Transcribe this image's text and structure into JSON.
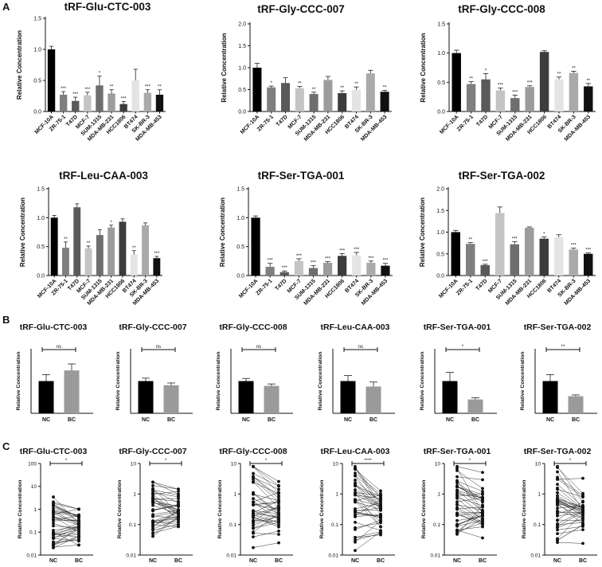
{
  "panel_labels": [
    "A",
    "B",
    "C"
  ],
  "chart_data": [
    {
      "panel": "A",
      "type": "bar",
      "title": "tRF-Glu-CTC-003",
      "ylabel": "Relative Concentration",
      "ylim": [
        0,
        1.5
      ],
      "yticks": [
        "0.0",
        "0.5",
        "1.0",
        "1.5"
      ],
      "categories": [
        "MCF-10A",
        "ZR-75-1",
        "T47D",
        "MCF-7",
        "SUM-1315",
        "MDA-MB-231",
        "HCC1806",
        "BT474",
        "SK-BR-3",
        "MDA-MB-453"
      ],
      "values": [
        1.0,
        0.27,
        0.17,
        0.26,
        0.42,
        0.29,
        0.12,
        0.5,
        0.3,
        0.27
      ],
      "errors": [
        0.05,
        0.05,
        0.06,
        0.05,
        0.15,
        0.06,
        0.04,
        0.18,
        0.05,
        0.08
      ],
      "significance": [
        "",
        "***",
        "***",
        "***",
        "*",
        "**",
        "***",
        "",
        "***",
        "**"
      ],
      "colors": [
        "#000000",
        "#7f7f7f",
        "#5a5a5a",
        "#c4c4c4",
        "#6e6e6e",
        "#9c9c9c",
        "#3c3c3c",
        "#e4e4e4",
        "#aaaaaa",
        "#111111"
      ]
    },
    {
      "panel": "A",
      "type": "bar",
      "title": "tRF-Gly-CCC-007",
      "ylabel": "Relative Concentration",
      "ylim": [
        0,
        2.0
      ],
      "yticks": [
        "0.0",
        "0.5",
        "1.0",
        "1.5",
        "2.0"
      ],
      "categories": [
        "MCF-10A",
        "ZR-75-1",
        "T47D",
        "MCF-7",
        "SUM-1315",
        "MDA-MB-231",
        "HCC1806",
        "BT474",
        "SK-BR-3",
        "MDA-MB-453"
      ],
      "values": [
        1.0,
        0.55,
        0.65,
        0.53,
        0.4,
        0.72,
        0.42,
        0.5,
        0.87,
        0.45
      ],
      "errors": [
        0.1,
        0.03,
        0.12,
        0.04,
        0.04,
        0.08,
        0.05,
        0.06,
        0.07,
        0.03
      ],
      "significance": [
        "",
        "*",
        "",
        "**",
        "**",
        "",
        "**",
        "**",
        "",
        "**"
      ],
      "colors": [
        "#000000",
        "#7f7f7f",
        "#5a5a5a",
        "#c4c4c4",
        "#6e6e6e",
        "#9c9c9c",
        "#3c3c3c",
        "#e4e4e4",
        "#aaaaaa",
        "#111111"
      ]
    },
    {
      "panel": "A",
      "type": "bar",
      "title": "tRF-Gly-CCC-008",
      "ylabel": "Relative Concentration",
      "ylim": [
        0,
        1.5
      ],
      "yticks": [
        "0.0",
        "0.5",
        "1.0",
        "1.5"
      ],
      "categories": [
        "MCF-10A",
        "ZR-75-1",
        "T47D",
        "MCF-7",
        "SUM-1315",
        "MDA-MB-231",
        "HCC1806",
        "BT474",
        "SK-BR-3",
        "MDA-MB-453"
      ],
      "values": [
        1.0,
        0.47,
        0.55,
        0.36,
        0.23,
        0.42,
        1.02,
        0.55,
        0.66,
        0.43
      ],
      "errors": [
        0.05,
        0.04,
        0.1,
        0.04,
        0.05,
        0.02,
        0.02,
        0.04,
        0.03,
        0.05
      ],
      "significance": [
        "",
        "**",
        "*",
        "***",
        "***",
        "***",
        "",
        "**",
        "**",
        "**"
      ],
      "colors": [
        "#000000",
        "#7f7f7f",
        "#5a5a5a",
        "#c4c4c4",
        "#6e6e6e",
        "#9c9c9c",
        "#3c3c3c",
        "#e4e4e4",
        "#aaaaaa",
        "#111111"
      ]
    },
    {
      "panel": "A",
      "type": "bar",
      "title": "tRF-Leu-CAA-003",
      "ylabel": "Relative Concentration",
      "ylim": [
        0,
        1.5
      ],
      "yticks": [
        "0.0",
        "0.5",
        "1.0",
        "1.5"
      ],
      "categories": [
        "MCF-10A",
        "ZR-75-1",
        "T47D",
        "MCF-7",
        "SUM-1315",
        "MDA-MB-231",
        "HCC1806",
        "BT474",
        "SK-BR-3",
        "MDA-MB-453"
      ],
      "values": [
        1.0,
        0.48,
        1.18,
        0.47,
        0.7,
        0.83,
        0.93,
        0.36,
        0.87,
        0.3
      ],
      "errors": [
        0.04,
        0.1,
        0.06,
        0.04,
        0.09,
        0.04,
        0.05,
        0.07,
        0.04,
        0.03
      ],
      "significance": [
        "",
        "**",
        "",
        "**",
        "",
        "*",
        "",
        "**",
        "",
        "***"
      ],
      "colors": [
        "#000000",
        "#7f7f7f",
        "#5a5a5a",
        "#c4c4c4",
        "#6e6e6e",
        "#9c9c9c",
        "#3c3c3c",
        "#e4e4e4",
        "#aaaaaa",
        "#111111"
      ]
    },
    {
      "panel": "A",
      "type": "bar",
      "title": "tRF-Ser-TGA-001",
      "ylabel": "Relative Concentration",
      "ylim": [
        0,
        1.5
      ],
      "yticks": [
        "0.0",
        "0.5",
        "1.0",
        "1.5"
      ],
      "categories": [
        "MCF-10A",
        "ZR-75-1",
        "T47D",
        "MCF-7",
        "SUM-1315",
        "MDA-MB-231",
        "HCC1806",
        "BT474",
        "SK-BR-3",
        "MDA-MB-453"
      ],
      "values": [
        1.0,
        0.15,
        0.06,
        0.25,
        0.13,
        0.22,
        0.34,
        0.35,
        0.22,
        0.17
      ],
      "errors": [
        0.03,
        0.06,
        0.02,
        0.04,
        0.04,
        0.02,
        0.04,
        0.05,
        0.03,
        0.04
      ],
      "significance": [
        "",
        "***",
        "***",
        "***",
        "***",
        "***",
        "***",
        "***",
        "***",
        "***"
      ],
      "colors": [
        "#000000",
        "#7f7f7f",
        "#5a5a5a",
        "#c4c4c4",
        "#6e6e6e",
        "#9c9c9c",
        "#3c3c3c",
        "#e4e4e4",
        "#aaaaaa",
        "#111111"
      ]
    },
    {
      "panel": "A",
      "type": "bar",
      "title": "tRF-Ser-TGA-002",
      "ylabel": "Relative Concentration",
      "ylim": [
        0,
        2.0
      ],
      "yticks": [
        "0.0",
        "0.5",
        "1.0",
        "1.5",
        "2.0"
      ],
      "categories": [
        "MCF-10A",
        "ZR-75-1",
        "T47D",
        "MCF-7",
        "SUM-1315",
        "MDA-MB-231",
        "HCC1806",
        "BT474",
        "SK-BR-3",
        "MDA-MB-453"
      ],
      "values": [
        1.0,
        0.73,
        0.24,
        1.44,
        0.72,
        1.1,
        0.85,
        0.88,
        0.6,
        0.5
      ],
      "errors": [
        0.04,
        0.03,
        0.02,
        0.14,
        0.06,
        0.02,
        0.04,
        0.06,
        0.03,
        0.02
      ],
      "significance": [
        "",
        "**",
        "***",
        "",
        "***",
        "",
        "*",
        "",
        "***",
        "***"
      ],
      "colors": [
        "#000000",
        "#7f7f7f",
        "#5a5a5a",
        "#c4c4c4",
        "#6e6e6e",
        "#9c9c9c",
        "#3c3c3c",
        "#e4e4e4",
        "#aaaaaa",
        "#111111"
      ]
    },
    {
      "panel": "B",
      "type": "bar",
      "title": "tRF-Glu-CTC-003",
      "ylabel": "Relative Concentration",
      "ylim": [
        0,
        2.0
      ],
      "categories": [
        "NC",
        "BC"
      ],
      "values": [
        1.0,
        1.33
      ],
      "errors": [
        0.2,
        0.2
      ],
      "significance": "ns",
      "colors": [
        "#000000",
        "#9a9a9a"
      ]
    },
    {
      "panel": "B",
      "type": "bar",
      "title": "tRF-Gly-CCC-007",
      "ylabel": "Relative Concentration",
      "ylim": [
        0,
        2.0
      ],
      "categories": [
        "NC",
        "BC"
      ],
      "values": [
        1.0,
        0.87
      ],
      "errors": [
        0.09,
        0.07
      ],
      "significance": "ns",
      "colors": [
        "#000000",
        "#9a9a9a"
      ]
    },
    {
      "panel": "B",
      "type": "bar",
      "title": "tRF-Gly-CCC-008",
      "ylabel": "Relative Concentration",
      "ylim": [
        0,
        2.0
      ],
      "categories": [
        "NC",
        "BC"
      ],
      "values": [
        1.0,
        0.85
      ],
      "errors": [
        0.08,
        0.06
      ],
      "significance": "ns",
      "colors": [
        "#000000",
        "#9a9a9a"
      ]
    },
    {
      "panel": "B",
      "type": "bar",
      "title": "tRF-Leu-CAA-003",
      "ylabel": "Relative Concentration",
      "ylim": [
        0,
        2.0
      ],
      "categories": [
        "NC",
        "BC"
      ],
      "values": [
        1.0,
        0.83
      ],
      "errors": [
        0.17,
        0.14
      ],
      "significance": "ns",
      "colors": [
        "#000000",
        "#9a9a9a"
      ]
    },
    {
      "panel": "B",
      "type": "bar",
      "title": "tRF-Ser-TGA-001",
      "ylabel": "Relative Concentration",
      "ylim": [
        0,
        2.0
      ],
      "categories": [
        "NC",
        "BC"
      ],
      "values": [
        1.0,
        0.43
      ],
      "errors": [
        0.27,
        0.05
      ],
      "significance": "*",
      "colors": [
        "#000000",
        "#9a9a9a"
      ]
    },
    {
      "panel": "B",
      "type": "bar",
      "title": "tRF-Ser-TGA-002",
      "ylabel": "Relative Concentration",
      "ylim": [
        0,
        2.0
      ],
      "categories": [
        "NC",
        "BC"
      ],
      "values": [
        1.0,
        0.53
      ],
      "errors": [
        0.2,
        0.04
      ],
      "significance": "**",
      "colors": [
        "#000000",
        "#9a9a9a"
      ]
    },
    {
      "panel": "C",
      "type": "scatter",
      "title": "tRF-Glu-CTC-003",
      "ylabel": "Relative Concentration",
      "yscale": "log",
      "ylim": [
        0.01,
        100
      ],
      "yticks": [
        "0.01",
        "0.1",
        "1",
        "10",
        "100"
      ],
      "categories": [
        "NC",
        "BC"
      ],
      "significance": "*",
      "pairs": 40
    },
    {
      "panel": "C",
      "type": "scatter",
      "title": "tRF-Gly-CCC-007",
      "ylabel": "Relative Concentration",
      "yscale": "log",
      "ylim": [
        0.01,
        10
      ],
      "yticks": [
        "0.01",
        "0.1",
        "1",
        "10"
      ],
      "categories": [
        "NC",
        "BC"
      ],
      "significance": "*",
      "pairs": 40
    },
    {
      "panel": "C",
      "type": "scatter",
      "title": "tRF-Gly-CCC-008",
      "ylabel": "Relative Concentration",
      "yscale": "log",
      "ylim": [
        0.01,
        10
      ],
      "yticks": [
        "0.01",
        "0.1",
        "1",
        "10"
      ],
      "categories": [
        "NC",
        "BC"
      ],
      "significance": "*",
      "pairs": 40
    },
    {
      "panel": "C",
      "type": "scatter",
      "title": "tRF-Leu-CAA-003",
      "ylabel": "Relative Concentration",
      "yscale": "log",
      "ylim": [
        0.01,
        10
      ],
      "yticks": [
        "0.01",
        "0.1",
        "1",
        "10"
      ],
      "categories": [
        "NC",
        "BC"
      ],
      "significance": "****",
      "pairs": 40
    },
    {
      "panel": "C",
      "type": "scatter",
      "title": "tRF-Ser-TGA-001",
      "ylabel": "Relative Concentration",
      "yscale": "log",
      "ylim": [
        0.01,
        10
      ],
      "yticks": [
        "0.01",
        "0.1",
        "1",
        "10"
      ],
      "categories": [
        "NC",
        "BC"
      ],
      "significance": "*",
      "pairs": 40
    },
    {
      "panel": "C",
      "type": "scatter",
      "title": "tRF-Ser-TGA-002",
      "ylabel": "Relative Concentration",
      "yscale": "log",
      "ylim": [
        0.01,
        10
      ],
      "yticks": [
        "0.01",
        "0.1",
        "1",
        "10"
      ],
      "categories": [
        "NC",
        "BC"
      ],
      "significance": "*",
      "pairs": 40
    }
  ]
}
